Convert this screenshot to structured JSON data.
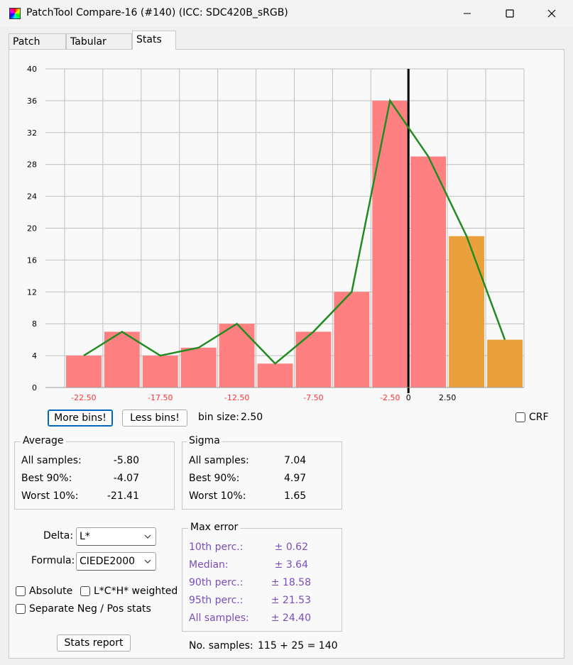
{
  "window": {
    "title": "PatchTool Compare-16 (#140) (ICC: SDC420B_sRGB)"
  },
  "tabs": [
    {
      "label": "Patch view",
      "active": false
    },
    {
      "label": "Tabular data",
      "active": false
    },
    {
      "label": "Stats",
      "active": true
    }
  ],
  "chart_data": {
    "type": "bar",
    "bin_size": 2.5,
    "ylim": [
      0,
      40
    ],
    "yticks": [
      "0",
      "4",
      "8",
      "12",
      "16",
      "20",
      "24",
      "28",
      "32",
      "36",
      "40"
    ],
    "xticks": [
      {
        "label": "-22.50",
        "value": -22.5
      },
      {
        "label": "-17.50",
        "value": -17.5
      },
      {
        "label": "-12.50",
        "value": -12.5
      },
      {
        "label": "-7.50",
        "value": -7.5
      },
      {
        "label": "-2.50",
        "value": -2.5
      },
      {
        "label": "0",
        "value": 0
      },
      {
        "label": "2.50",
        "value": 2.5
      }
    ],
    "bins": [
      {
        "center": -22.5,
        "value": 4,
        "side": "neg"
      },
      {
        "center": -20.0,
        "value": 7,
        "side": "neg"
      },
      {
        "center": -17.5,
        "value": 4,
        "side": "neg"
      },
      {
        "center": -15.0,
        "value": 5,
        "side": "neg"
      },
      {
        "center": -12.5,
        "value": 8,
        "side": "neg"
      },
      {
        "center": -10.0,
        "value": 3,
        "side": "neg"
      },
      {
        "center": -7.5,
        "value": 7,
        "side": "neg"
      },
      {
        "center": -5.0,
        "value": 12,
        "side": "neg"
      },
      {
        "center": -2.5,
        "value": 36,
        "side": "neg"
      },
      {
        "center": 0.0,
        "value": 29,
        "side": "neg"
      },
      {
        "center": 2.5,
        "value": 19,
        "side": "pos"
      },
      {
        "center": 5.0,
        "value": 6,
        "side": "pos"
      }
    ],
    "line": [
      {
        "x": -22.5,
        "y": 4
      },
      {
        "x": -20.0,
        "y": 7
      },
      {
        "x": -17.5,
        "y": 4
      },
      {
        "x": -15.0,
        "y": 5
      },
      {
        "x": -12.5,
        "y": 8
      },
      {
        "x": -10.0,
        "y": 3
      },
      {
        "x": -7.5,
        "y": 7
      },
      {
        "x": -5.0,
        "y": 12
      },
      {
        "x": -2.5,
        "y": 36
      },
      {
        "x": 0.0,
        "y": 29
      },
      {
        "x": 2.5,
        "y": 19
      },
      {
        "x": 5.0,
        "y": 6
      }
    ],
    "colors": {
      "neg": "#ff8080",
      "pos": "#eba13b",
      "line": "#228b22",
      "zero": "#000000",
      "neg_tick": "#ff3333",
      "grid": "#c0c0c0"
    }
  },
  "controls": {
    "more_bins": "More bins!",
    "less_bins": "Less bins!",
    "bin_size_label": "bin size:",
    "bin_size_value": "2.50",
    "crf_label": "CRF"
  },
  "average": {
    "title": "Average",
    "rows": [
      {
        "label": "All samples:",
        "value": "-5.80"
      },
      {
        "label": "Best 90%:",
        "value": "-4.07"
      },
      {
        "label": "Worst 10%:",
        "value": "-21.41"
      }
    ]
  },
  "sigma": {
    "title": "Sigma",
    "rows": [
      {
        "label": "All samples:",
        "value": "7.04"
      },
      {
        "label": "Best 90%:",
        "value": "4.97"
      },
      {
        "label": "Worst 10%:",
        "value": "1.65"
      }
    ]
  },
  "delta": {
    "label": "Delta:",
    "value": "L*"
  },
  "formula": {
    "label": "Formula:",
    "value": "CIEDE2000"
  },
  "options": {
    "absolute": "Absolute",
    "lch_weighted": "L*C*H* weighted",
    "separate": "Separate Neg / Pos stats"
  },
  "max_error": {
    "title": "Max error",
    "rows": [
      {
        "label": "10th perc.:",
        "value": "± 0.62"
      },
      {
        "label": "Median:",
        "value": "± 3.64"
      },
      {
        "label": "90th perc.:",
        "value": "± 18.58"
      },
      {
        "label": "95th perc.:",
        "value": "± 21.53"
      },
      {
        "label": "All samples:",
        "value": "± 24.40"
      }
    ]
  },
  "stats_report": "Stats report",
  "samples": {
    "label": "No. samples:",
    "value": "115 + 25 = 140"
  }
}
